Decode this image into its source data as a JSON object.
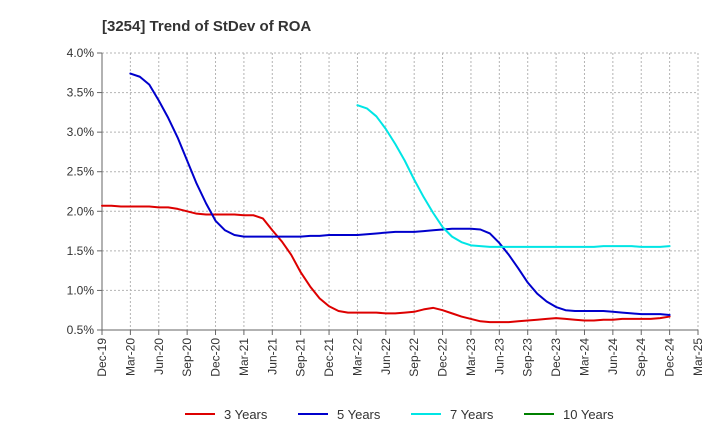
{
  "chart_data": {
    "type": "line",
    "title": "[3254]  Trend of StDev of ROA",
    "xlabel": "",
    "ylabel": "",
    "x_ticks": [
      "Dec-19",
      "Mar-20",
      "Jun-20",
      "Sep-20",
      "Dec-20",
      "Mar-21",
      "Jun-21",
      "Sep-21",
      "Dec-21",
      "Mar-22",
      "Jun-22",
      "Sep-22",
      "Dec-22",
      "Mar-23",
      "Jun-23",
      "Sep-23",
      "Dec-23",
      "Mar-24",
      "Jun-24",
      "Sep-24",
      "Dec-24",
      "Mar-25"
    ],
    "y_ticks": [
      "0.5%",
      "1.0%",
      "1.5%",
      "2.0%",
      "2.5%",
      "3.0%",
      "3.5%",
      "4.0%"
    ],
    "ylim": [
      0.5,
      4.0
    ],
    "y_unit": "%",
    "grid": true,
    "legend_position": "bottom",
    "series": [
      {
        "name": "3 Years",
        "color": "#dd0000",
        "points": [
          [
            "Dec-19",
            2.07
          ],
          [
            "Jan-20",
            2.07
          ],
          [
            "Feb-20",
            2.06
          ],
          [
            "Mar-20",
            2.06
          ],
          [
            "Apr-20",
            2.06
          ],
          [
            "May-20",
            2.06
          ],
          [
            "Jun-20",
            2.05
          ],
          [
            "Jul-20",
            2.05
          ],
          [
            "Aug-20",
            2.03
          ],
          [
            "Sep-20",
            2.0
          ],
          [
            "Oct-20",
            1.97
          ],
          [
            "Nov-20",
            1.96
          ],
          [
            "Dec-20",
            1.96
          ],
          [
            "Jan-21",
            1.96
          ],
          [
            "Feb-21",
            1.96
          ],
          [
            "Mar-21",
            1.95
          ],
          [
            "Apr-21",
            1.95
          ],
          [
            "May-21",
            1.91
          ],
          [
            "Jun-21",
            1.76
          ],
          [
            "Jul-21",
            1.62
          ],
          [
            "Aug-21",
            1.45
          ],
          [
            "Sep-21",
            1.23
          ],
          [
            "Oct-21",
            1.05
          ],
          [
            "Nov-21",
            0.9
          ],
          [
            "Dec-21",
            0.8
          ],
          [
            "Jan-22",
            0.74
          ],
          [
            "Feb-22",
            0.72
          ],
          [
            "Mar-22",
            0.72
          ],
          [
            "Apr-22",
            0.72
          ],
          [
            "May-22",
            0.72
          ],
          [
            "Jun-22",
            0.71
          ],
          [
            "Jul-22",
            0.71
          ],
          [
            "Aug-22",
            0.72
          ],
          [
            "Sep-22",
            0.73
          ],
          [
            "Oct-22",
            0.76
          ],
          [
            "Nov-22",
            0.78
          ],
          [
            "Dec-22",
            0.75
          ],
          [
            "Jan-23",
            0.71
          ],
          [
            "Feb-23",
            0.67
          ],
          [
            "Mar-23",
            0.64
          ],
          [
            "Apr-23",
            0.61
          ],
          [
            "May-23",
            0.6
          ],
          [
            "Jun-23",
            0.6
          ],
          [
            "Jul-23",
            0.6
          ],
          [
            "Aug-23",
            0.61
          ],
          [
            "Sep-23",
            0.62
          ],
          [
            "Oct-23",
            0.63
          ],
          [
            "Nov-23",
            0.64
          ],
          [
            "Dec-23",
            0.65
          ],
          [
            "Jan-24",
            0.64
          ],
          [
            "Feb-24",
            0.63
          ],
          [
            "Mar-24",
            0.62
          ],
          [
            "Apr-24",
            0.62
          ],
          [
            "May-24",
            0.63
          ],
          [
            "Jun-24",
            0.63
          ],
          [
            "Jul-24",
            0.64
          ],
          [
            "Aug-24",
            0.64
          ],
          [
            "Sep-24",
            0.64
          ],
          [
            "Oct-24",
            0.64
          ],
          [
            "Nov-24",
            0.65
          ],
          [
            "Dec-24",
            0.67
          ]
        ]
      },
      {
        "name": "5 Years",
        "color": "#0000cc",
        "points": [
          [
            "Mar-20",
            3.74
          ],
          [
            "Apr-20",
            3.7
          ],
          [
            "May-20",
            3.6
          ],
          [
            "Jun-20",
            3.4
          ],
          [
            "Jul-20",
            3.18
          ],
          [
            "Aug-20",
            2.93
          ],
          [
            "Sep-20",
            2.64
          ],
          [
            "Oct-20",
            2.35
          ],
          [
            "Nov-20",
            2.1
          ],
          [
            "Dec-20",
            1.88
          ],
          [
            "Jan-21",
            1.76
          ],
          [
            "Feb-21",
            1.7
          ],
          [
            "Mar-21",
            1.68
          ],
          [
            "Apr-21",
            1.68
          ],
          [
            "May-21",
            1.68
          ],
          [
            "Jun-21",
            1.68
          ],
          [
            "Jul-21",
            1.68
          ],
          [
            "Aug-21",
            1.68
          ],
          [
            "Sep-21",
            1.68
          ],
          [
            "Oct-21",
            1.69
          ],
          [
            "Nov-21",
            1.69
          ],
          [
            "Dec-21",
            1.7
          ],
          [
            "Jan-22",
            1.7
          ],
          [
            "Feb-22",
            1.7
          ],
          [
            "Mar-22",
            1.7
          ],
          [
            "Apr-22",
            1.71
          ],
          [
            "May-22",
            1.72
          ],
          [
            "Jun-22",
            1.73
          ],
          [
            "Jul-22",
            1.74
          ],
          [
            "Aug-22",
            1.74
          ],
          [
            "Sep-22",
            1.74
          ],
          [
            "Oct-22",
            1.75
          ],
          [
            "Nov-22",
            1.76
          ],
          [
            "Dec-22",
            1.77
          ],
          [
            "Jan-23",
            1.78
          ],
          [
            "Feb-23",
            1.78
          ],
          [
            "Mar-23",
            1.78
          ],
          [
            "Apr-23",
            1.77
          ],
          [
            "May-23",
            1.72
          ],
          [
            "Jun-23",
            1.6
          ],
          [
            "Jul-23",
            1.45
          ],
          [
            "Aug-23",
            1.28
          ],
          [
            "Sep-23",
            1.1
          ],
          [
            "Oct-23",
            0.96
          ],
          [
            "Nov-23",
            0.86
          ],
          [
            "Dec-23",
            0.79
          ],
          [
            "Jan-24",
            0.75
          ],
          [
            "Feb-24",
            0.74
          ],
          [
            "Mar-24",
            0.74
          ],
          [
            "Apr-24",
            0.74
          ],
          [
            "May-24",
            0.74
          ],
          [
            "Jun-24",
            0.73
          ],
          [
            "Jul-24",
            0.72
          ],
          [
            "Aug-24",
            0.71
          ],
          [
            "Sep-24",
            0.7
          ],
          [
            "Oct-24",
            0.7
          ],
          [
            "Nov-24",
            0.7
          ],
          [
            "Dec-24",
            0.69
          ]
        ]
      },
      {
        "name": "7 Years",
        "color": "#00e5e5",
        "points": [
          [
            "Mar-22",
            3.34
          ],
          [
            "Apr-22",
            3.3
          ],
          [
            "May-22",
            3.2
          ],
          [
            "Jun-22",
            3.04
          ],
          [
            "Jul-22",
            2.85
          ],
          [
            "Aug-22",
            2.64
          ],
          [
            "Sep-22",
            2.4
          ],
          [
            "Oct-22",
            2.18
          ],
          [
            "Nov-22",
            1.98
          ],
          [
            "Dec-22",
            1.8
          ],
          [
            "Jan-23",
            1.68
          ],
          [
            "Feb-23",
            1.61
          ],
          [
            "Mar-23",
            1.57
          ],
          [
            "Apr-23",
            1.56
          ],
          [
            "May-23",
            1.55
          ],
          [
            "Jun-23",
            1.55
          ],
          [
            "Jul-23",
            1.55
          ],
          [
            "Aug-23",
            1.55
          ],
          [
            "Sep-23",
            1.55
          ],
          [
            "Oct-23",
            1.55
          ],
          [
            "Nov-23",
            1.55
          ],
          [
            "Dec-23",
            1.55
          ],
          [
            "Jan-24",
            1.55
          ],
          [
            "Feb-24",
            1.55
          ],
          [
            "Mar-24",
            1.55
          ],
          [
            "Apr-24",
            1.55
          ],
          [
            "May-24",
            1.56
          ],
          [
            "Jun-24",
            1.56
          ],
          [
            "Jul-24",
            1.56
          ],
          [
            "Aug-24",
            1.56
          ],
          [
            "Sep-24",
            1.55
          ],
          [
            "Oct-24",
            1.55
          ],
          [
            "Nov-24",
            1.55
          ],
          [
            "Dec-24",
            1.56
          ]
        ]
      },
      {
        "name": "10 Years",
        "color": "#008000",
        "points": []
      }
    ]
  }
}
